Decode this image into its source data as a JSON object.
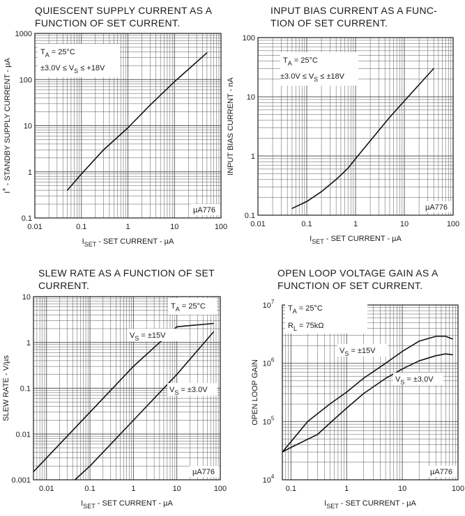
{
  "page": {
    "part_number": "µA776"
  },
  "chart_data": [
    {
      "type": "line",
      "title": [
        "QUIESCENT SUPPLY CURRENT AS A",
        "FUNCTION OF SET CURRENT."
      ],
      "xlabel": {
        "main": "I",
        "sub": "SET",
        "rest": " -  SET CURRENT - µA"
      },
      "ylabel": {
        "pre": "I",
        "sup": "+",
        "rest": " - STANDBY SUPPLY CURRENT - µA"
      },
      "xscale": "log",
      "yscale": "log",
      "xlim": [
        0.01,
        100
      ],
      "ylim": [
        0.1,
        1000
      ],
      "xticks": [
        "0.01",
        "0.1",
        "1",
        "10",
        "100"
      ],
      "yticks": [
        "0.1",
        "1",
        "10",
        "100",
        "1000"
      ],
      "grid": true,
      "annotations": [
        {
          "text": "T",
          "sub": "A",
          "rest": " = 25°C"
        },
        {
          "text": "±3.0V ≤ V",
          "sub": "S",
          "rest": " ≤ +18V"
        }
      ],
      "badge": "µA776",
      "series": [
        {
          "x": [
            0.05,
            0.1,
            0.3,
            1,
            3,
            10,
            50
          ],
          "y": [
            0.4,
            0.9,
            3,
            9,
            28,
            90,
            380
          ]
        }
      ]
    },
    {
      "type": "line",
      "title": [
        "INPUT BIAS CURRENT AS A FUNC-",
        "TION OF SET CURRENT."
      ],
      "xlabel": {
        "main": "I",
        "sub": "SET",
        "rest": " -  SET CURRENT - µA"
      },
      "ylabel": {
        "pre": "INPUT BIAS CURRENT - nA",
        "sup": "",
        "rest": ""
      },
      "xscale": "log",
      "yscale": "log",
      "xlim": [
        0.01,
        100
      ],
      "ylim": [
        0.1,
        100
      ],
      "xticks": [
        "0.01",
        "0.1",
        "1",
        "10",
        "100"
      ],
      "yticks": [
        "0.1",
        "1",
        "10",
        "100"
      ],
      "grid": true,
      "annotations": [
        {
          "text": "T",
          "sub": "A",
          "rest": " = 25°C"
        },
        {
          "text": "±3.0V ≤ V",
          "sub": "S",
          "rest": " ≤  ±18V"
        }
      ],
      "badge": "µA776",
      "series": [
        {
          "x": [
            0.05,
            0.1,
            0.2,
            0.4,
            0.7,
            1,
            2,
            5,
            10,
            20,
            40
          ],
          "y": [
            0.13,
            0.17,
            0.25,
            0.4,
            0.62,
            0.9,
            1.8,
            4.5,
            8.5,
            16,
            30
          ]
        }
      ]
    },
    {
      "type": "line",
      "title": [
        "SLEW RATE AS A FUNCTION OF SET",
        "CURRENT."
      ],
      "xlabel": {
        "main": "I",
        "sub": "SET",
        "rest": " - SET CURRENT - µA"
      },
      "ylabel": {
        "pre": "SLEW RATE - V/µs",
        "sup": "",
        "rest": ""
      },
      "xscale": "log",
      "yscale": "log",
      "xlim": [
        0.005,
        100
      ],
      "ylim": [
        0.001,
        10
      ],
      "xticks": [
        "0.01",
        "0.1",
        "1",
        "10",
        "100"
      ],
      "yticks": [
        "0.001",
        "0.01",
        "0.1",
        "1",
        "10"
      ],
      "grid": true,
      "annotations": [
        {
          "text": "T",
          "sub": "A",
          "rest": " =  25°C"
        }
      ],
      "badge": "µA776",
      "series": [
        {
          "name": "V_S = ±15V",
          "label": {
            "text": "V",
            "sub": "S",
            "rest": " = ±15V"
          },
          "x": [
            0.005,
            0.01,
            0.1,
            1,
            10,
            70
          ],
          "y": [
            0.0015,
            0.003,
            0.03,
            0.3,
            2.2,
            2.6
          ]
        },
        {
          "name": "V_S = ±3.0V",
          "label": {
            "text": "V",
            "sub": "S",
            "rest": " = ±3.0V"
          },
          "x": [
            0.045,
            0.1,
            1,
            10,
            70
          ],
          "y": [
            0.001,
            0.002,
            0.02,
            0.2,
            1.7
          ]
        }
      ]
    },
    {
      "type": "line",
      "title": [
        "OPEN LOOP VOLTAGE GAIN AS A",
        "FUNCTION OF SET CURRENT."
      ],
      "xlabel": {
        "main": "I",
        "sub": "SET",
        "rest": " - SET CURRENT - µA"
      },
      "ylabel": {
        "pre": "OPEN LOOP GAIN",
        "sup": "",
        "rest": ""
      },
      "xscale": "log",
      "yscale": "log",
      "xlim": [
        0.07,
        100
      ],
      "ylim": [
        10000,
        10000000
      ],
      "xticks": [
        "0.1",
        "1",
        "10",
        "100"
      ],
      "yticks": [
        "10^4",
        "10^5",
        "10^6",
        "10^7"
      ],
      "grid": true,
      "annotations": [
        {
          "text": "T",
          "sub": "A",
          "rest": " = 25°C"
        },
        {
          "text": "R",
          "sub": "L",
          "rest": " = 75kΩ"
        }
      ],
      "badge": "µA776",
      "series": [
        {
          "name": "V_S = ±15V",
          "label": {
            "text": "V",
            "sub": "S",
            "rest": " = ±15V"
          },
          "x": [
            0.07,
            0.1,
            0.2,
            0.5,
            1,
            2,
            5,
            10,
            20,
            40,
            60,
            80
          ],
          "y": [
            30000,
            45000,
            100000,
            200000,
            320000,
            550000,
            1000000,
            1600000,
            2400000,
            2900000,
            2900000,
            2600000
          ]
        },
        {
          "name": "V_S = ±3.0V",
          "label": {
            "text": "V",
            "sub": "S",
            "rest": " = ±3.0V"
          },
          "x": [
            0.07,
            0.1,
            0.3,
            0.6,
            1,
            2,
            5,
            10,
            20,
            40,
            60,
            80
          ],
          "y": [
            30000,
            36000,
            60000,
            110000,
            170000,
            300000,
            550000,
            800000,
            1100000,
            1350000,
            1450000,
            1400000
          ]
        }
      ]
    }
  ]
}
